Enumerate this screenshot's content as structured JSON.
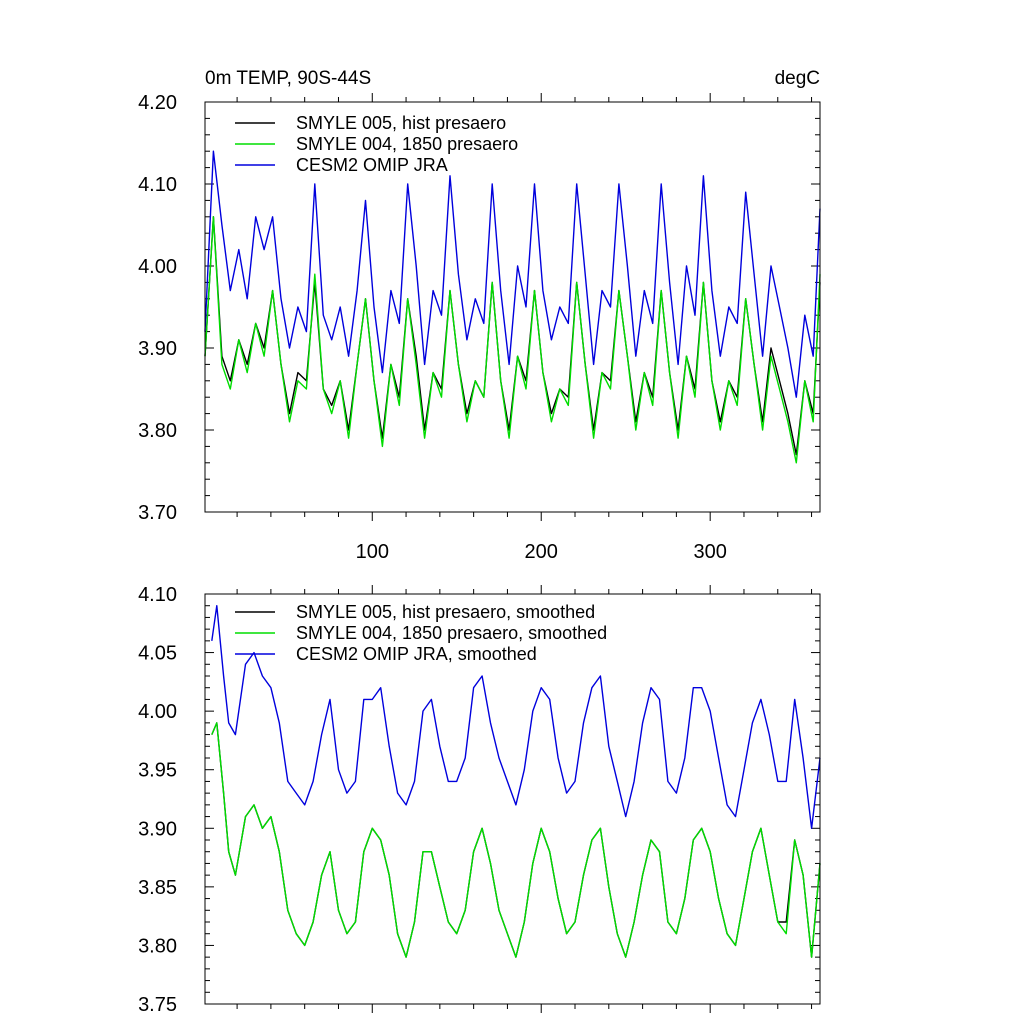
{
  "chart_data": [
    {
      "type": "line",
      "title": "0m TEMP, 90S-44S",
      "units": "degC",
      "xlim": [
        1,
        365
      ],
      "ylim": [
        3.7,
        4.2
      ],
      "xticks": [
        100,
        200,
        300
      ],
      "yticks": [
        "3.70",
        "3.80",
        "3.90",
        "4.00",
        "4.10",
        "4.20"
      ],
      "series": [
        {
          "name": "SMYLE 005, hist presaero",
          "color": "#000000",
          "x": [
            1,
            6,
            11,
            16,
            21,
            26,
            31,
            36,
            41,
            46,
            51,
            56,
            61,
            66,
            71,
            76,
            81,
            86,
            91,
            96,
            101,
            106,
            111,
            116,
            121,
            126,
            131,
            136,
            141,
            146,
            151,
            156,
            161,
            166,
            171,
            176,
            181,
            186,
            191,
            196,
            201,
            206,
            211,
            216,
            221,
            226,
            231,
            236,
            241,
            246,
            251,
            256,
            261,
            266,
            271,
            276,
            281,
            286,
            291,
            296,
            301,
            306,
            311,
            316,
            321,
            326,
            331,
            336,
            341,
            346,
            351,
            356,
            361,
            365
          ],
          "values": [
            3.89,
            4.06,
            3.89,
            3.86,
            3.91,
            3.88,
            3.93,
            3.9,
            3.97,
            3.88,
            3.82,
            3.87,
            3.86,
            3.98,
            3.85,
            3.83,
            3.86,
            3.8,
            3.88,
            3.96,
            3.86,
            3.79,
            3.88,
            3.84,
            3.96,
            3.89,
            3.8,
            3.87,
            3.85,
            3.97,
            3.88,
            3.82,
            3.86,
            3.84,
            3.98,
            3.86,
            3.8,
            3.89,
            3.86,
            3.97,
            3.87,
            3.82,
            3.85,
            3.84,
            3.98,
            3.88,
            3.8,
            3.87,
            3.86,
            3.97,
            3.89,
            3.81,
            3.87,
            3.84,
            3.97,
            3.87,
            3.8,
            3.89,
            3.85,
            3.98,
            3.86,
            3.81,
            3.86,
            3.84,
            3.96,
            3.88,
            3.81,
            3.9,
            3.86,
            3.82,
            3.77,
            3.86,
            3.82,
            3.98
          ]
        },
        {
          "name": "SMYLE 004, 1850 presaero",
          "color": "#00dd00",
          "x": [
            1,
            6,
            11,
            16,
            21,
            26,
            31,
            36,
            41,
            46,
            51,
            56,
            61,
            66,
            71,
            76,
            81,
            86,
            91,
            96,
            101,
            106,
            111,
            116,
            121,
            126,
            131,
            136,
            141,
            146,
            151,
            156,
            161,
            166,
            171,
            176,
            181,
            186,
            191,
            196,
            201,
            206,
            211,
            216,
            221,
            226,
            231,
            236,
            241,
            246,
            251,
            256,
            261,
            266,
            271,
            276,
            281,
            286,
            291,
            296,
            301,
            306,
            311,
            316,
            321,
            326,
            331,
            336,
            341,
            346,
            351,
            356,
            361,
            365
          ],
          "values": [
            3.89,
            4.06,
            3.88,
            3.85,
            3.91,
            3.87,
            3.93,
            3.89,
            3.97,
            3.88,
            3.81,
            3.86,
            3.85,
            3.99,
            3.85,
            3.82,
            3.86,
            3.79,
            3.88,
            3.96,
            3.86,
            3.78,
            3.88,
            3.83,
            3.96,
            3.88,
            3.79,
            3.87,
            3.84,
            3.97,
            3.88,
            3.81,
            3.86,
            3.84,
            3.98,
            3.86,
            3.79,
            3.89,
            3.85,
            3.97,
            3.87,
            3.81,
            3.85,
            3.83,
            3.98,
            3.88,
            3.79,
            3.87,
            3.85,
            3.97,
            3.89,
            3.8,
            3.87,
            3.83,
            3.97,
            3.87,
            3.79,
            3.89,
            3.84,
            3.98,
            3.86,
            3.8,
            3.86,
            3.83,
            3.96,
            3.88,
            3.8,
            3.89,
            3.85,
            3.81,
            3.76,
            3.86,
            3.81,
            3.99
          ]
        },
        {
          "name": "CESM2 OMIP JRA",
          "color": "#0000dd",
          "x": [
            1,
            6,
            11,
            16,
            21,
            26,
            31,
            36,
            41,
            46,
            51,
            56,
            61,
            66,
            71,
            76,
            81,
            86,
            91,
            96,
            101,
            106,
            111,
            116,
            121,
            126,
            131,
            136,
            141,
            146,
            151,
            156,
            161,
            166,
            171,
            176,
            181,
            186,
            191,
            196,
            201,
            206,
            211,
            216,
            221,
            226,
            231,
            236,
            241,
            246,
            251,
            256,
            261,
            266,
            271,
            276,
            281,
            286,
            291,
            296,
            301,
            306,
            311,
            316,
            321,
            326,
            331,
            336,
            341,
            346,
            351,
            356,
            361,
            365
          ],
          "values": [
            3.92,
            4.14,
            4.05,
            3.97,
            4.02,
            3.96,
            4.06,
            4.02,
            4.06,
            3.96,
            3.9,
            3.95,
            3.92,
            4.1,
            3.94,
            3.91,
            3.95,
            3.89,
            3.97,
            4.08,
            3.95,
            3.87,
            3.97,
            3.93,
            4.1,
            4.0,
            3.88,
            3.97,
            3.94,
            4.11,
            3.99,
            3.91,
            3.96,
            3.93,
            4.1,
            3.97,
            3.88,
            4.0,
            3.95,
            4.1,
            3.97,
            3.91,
            3.95,
            3.93,
            4.1,
            3.99,
            3.88,
            3.97,
            3.95,
            4.1,
            4.0,
            3.89,
            3.97,
            3.93,
            4.1,
            3.98,
            3.88,
            4.0,
            3.94,
            4.11,
            3.97,
            3.89,
            3.95,
            3.93,
            4.09,
            3.99,
            3.89,
            4.0,
            3.95,
            3.9,
            3.84,
            3.94,
            3.89,
            4.07
          ]
        }
      ]
    },
    {
      "type": "line",
      "title": "",
      "xlim": [
        1,
        365
      ],
      "ylim": [
        3.75,
        4.1
      ],
      "xticks": [
        100,
        200,
        300
      ],
      "yticks": [
        "3.75",
        "3.80",
        "3.85",
        "3.90",
        "3.95",
        "4.00",
        "4.05",
        "4.10"
      ],
      "series": [
        {
          "name": "SMYLE 005, hist presaero, smoothed",
          "color": "#000000",
          "x": [
            5,
            8,
            12,
            15,
            19,
            25,
            30,
            35,
            40,
            45,
            50,
            55,
            60,
            65,
            70,
            75,
            80,
            85,
            90,
            95,
            100,
            105,
            110,
            115,
            120,
            125,
            130,
            135,
            140,
            145,
            150,
            155,
            160,
            165,
            170,
            175,
            180,
            185,
            190,
            195,
            200,
            205,
            210,
            215,
            220,
            225,
            230,
            235,
            240,
            245,
            250,
            255,
            260,
            265,
            270,
            275,
            280,
            285,
            290,
            295,
            300,
            305,
            310,
            315,
            320,
            325,
            330,
            335,
            340,
            345,
            350,
            355,
            360,
            365
          ],
          "values": [
            3.98,
            3.99,
            3.93,
            3.88,
            3.86,
            3.91,
            3.92,
            3.9,
            3.91,
            3.88,
            3.83,
            3.81,
            3.8,
            3.82,
            3.86,
            3.88,
            3.83,
            3.81,
            3.82,
            3.88,
            3.9,
            3.89,
            3.86,
            3.81,
            3.79,
            3.82,
            3.88,
            3.88,
            3.85,
            3.82,
            3.81,
            3.83,
            3.88,
            3.9,
            3.87,
            3.83,
            3.81,
            3.79,
            3.82,
            3.87,
            3.9,
            3.88,
            3.84,
            3.81,
            3.82,
            3.86,
            3.89,
            3.9,
            3.85,
            3.81,
            3.79,
            3.82,
            3.86,
            3.89,
            3.88,
            3.82,
            3.81,
            3.84,
            3.89,
            3.9,
            3.88,
            3.84,
            3.81,
            3.8,
            3.84,
            3.88,
            3.9,
            3.86,
            3.82,
            3.82,
            3.89,
            3.86,
            3.79,
            3.87
          ]
        },
        {
          "name": "SMYLE 004, 1850 presaero, smoothed",
          "color": "#00dd00",
          "x": [
            5,
            8,
            12,
            15,
            19,
            25,
            30,
            35,
            40,
            45,
            50,
            55,
            60,
            65,
            70,
            75,
            80,
            85,
            90,
            95,
            100,
            105,
            110,
            115,
            120,
            125,
            130,
            135,
            140,
            145,
            150,
            155,
            160,
            165,
            170,
            175,
            180,
            185,
            190,
            195,
            200,
            205,
            210,
            215,
            220,
            225,
            230,
            235,
            240,
            245,
            250,
            255,
            260,
            265,
            270,
            275,
            280,
            285,
            290,
            295,
            300,
            305,
            310,
            315,
            320,
            325,
            330,
            335,
            340,
            345,
            350,
            355,
            360,
            365
          ],
          "values": [
            3.98,
            3.99,
            3.93,
            3.88,
            3.86,
            3.91,
            3.92,
            3.9,
            3.91,
            3.88,
            3.83,
            3.81,
            3.8,
            3.82,
            3.86,
            3.88,
            3.83,
            3.81,
            3.82,
            3.88,
            3.9,
            3.89,
            3.86,
            3.81,
            3.79,
            3.82,
            3.88,
            3.88,
            3.85,
            3.82,
            3.81,
            3.83,
            3.88,
            3.9,
            3.87,
            3.83,
            3.81,
            3.79,
            3.82,
            3.87,
            3.9,
            3.88,
            3.84,
            3.81,
            3.82,
            3.86,
            3.89,
            3.9,
            3.85,
            3.81,
            3.79,
            3.82,
            3.86,
            3.89,
            3.88,
            3.82,
            3.81,
            3.84,
            3.89,
            3.9,
            3.88,
            3.84,
            3.81,
            3.8,
            3.84,
            3.88,
            3.9,
            3.86,
            3.82,
            3.81,
            3.89,
            3.86,
            3.79,
            3.87
          ]
        },
        {
          "name": "CESM2 OMIP JRA, smoothed",
          "color": "#0000dd",
          "x": [
            5,
            8,
            12,
            15,
            19,
            25,
            30,
            35,
            40,
            45,
            50,
            55,
            60,
            65,
            70,
            75,
            80,
            85,
            90,
            95,
            100,
            105,
            110,
            115,
            120,
            125,
            130,
            135,
            140,
            145,
            150,
            155,
            160,
            165,
            170,
            175,
            180,
            185,
            190,
            195,
            200,
            205,
            210,
            215,
            220,
            225,
            230,
            235,
            240,
            245,
            250,
            255,
            260,
            265,
            270,
            275,
            280,
            285,
            290,
            295,
            300,
            305,
            310,
            315,
            320,
            325,
            330,
            335,
            340,
            345,
            350,
            355,
            360,
            365
          ],
          "values": [
            4.06,
            4.09,
            4.03,
            3.99,
            3.98,
            4.04,
            4.05,
            4.03,
            4.02,
            3.99,
            3.94,
            3.93,
            3.92,
            3.94,
            3.98,
            4.01,
            3.95,
            3.93,
            3.94,
            4.01,
            4.01,
            4.02,
            3.97,
            3.93,
            3.92,
            3.94,
            4.0,
            4.01,
            3.97,
            3.94,
            3.94,
            3.96,
            4.02,
            4.03,
            3.99,
            3.96,
            3.94,
            3.92,
            3.95,
            4.0,
            4.02,
            4.01,
            3.96,
            3.93,
            3.94,
            3.99,
            4.02,
            4.03,
            3.97,
            3.94,
            3.91,
            3.94,
            3.99,
            4.02,
            4.01,
            3.94,
            3.93,
            3.96,
            4.02,
            4.02,
            4.0,
            3.96,
            3.92,
            3.91,
            3.95,
            3.99,
            4.01,
            3.98,
            3.94,
            3.94,
            4.01,
            3.96,
            3.9,
            3.96
          ]
        }
      ]
    }
  ]
}
